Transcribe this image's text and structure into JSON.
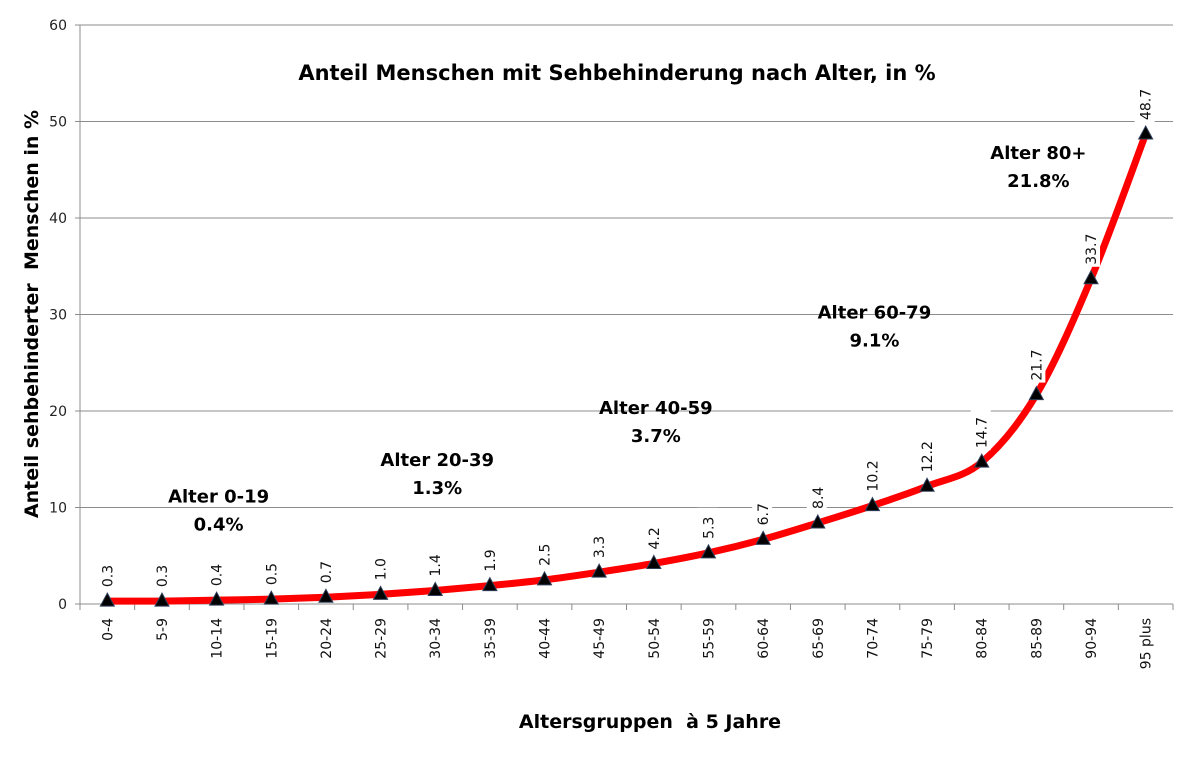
{
  "chart_data": {
    "type": "line",
    "title": "Anteil Menschen mit Sehbehinderung nach Alter, in %",
    "xlabel": "Altersgruppen  à 5 Jahre",
    "ylabel": "Anteil sehbehinderter  Menschen in %",
    "ylim": [
      0,
      60
    ],
    "yticks": [
      0,
      10,
      20,
      30,
      40,
      50,
      60
    ],
    "grid": true,
    "legend": "none",
    "categories": [
      "0-4",
      "5-9",
      "10-14",
      "15-19",
      "20-24",
      "25-29",
      "30-34",
      "35-39",
      "40-44",
      "45-49",
      "50-54",
      "55-59",
      "60-64",
      "65-69",
      "70-74",
      "75-79",
      "80-84",
      "85-89",
      "90-94",
      "95 plus"
    ],
    "series": [
      {
        "name": "Anteil sehbehinderter Menschen",
        "color": "#ff0000",
        "marker": "triangle",
        "marker_color": "#000000",
        "values": [
          0.3,
          0.3,
          0.4,
          0.5,
          0.7,
          1.0,
          1.4,
          1.9,
          2.5,
          3.3,
          4.2,
          5.3,
          6.7,
          8.4,
          10.2,
          12.2,
          14.7,
          21.7,
          33.7,
          48.7
        ],
        "labels": [
          "0.3",
          "0.3",
          "0.4",
          "0.5",
          "0.7",
          "1.0",
          "1.4",
          "1.9",
          "2.5",
          "3.3",
          "4.2",
          "5.3",
          "6.7",
          "8.4",
          "10.2",
          "12.2",
          "14.7",
          "21.7",
          "33.7",
          "48.7"
        ]
      }
    ],
    "annotations": [
      {
        "line1": "Alter 0-19",
        "line2": "0.4%",
        "category": "10-14",
        "y": 10.5
      },
      {
        "line1": "Alter 20-39",
        "line2": "1.3%",
        "category": "30-34",
        "y": 14.3
      },
      {
        "line1": "Alter 40-59",
        "line2": "3.7%",
        "category": "50-54",
        "y": 19.7
      },
      {
        "line1": "Alter 60-79",
        "line2": "9.1%",
        "category": "70-74",
        "y": 29.6
      },
      {
        "line1": "Alter 80+",
        "line2": "21.8%",
        "category": "85-89",
        "y": 46.1
      }
    ]
  }
}
